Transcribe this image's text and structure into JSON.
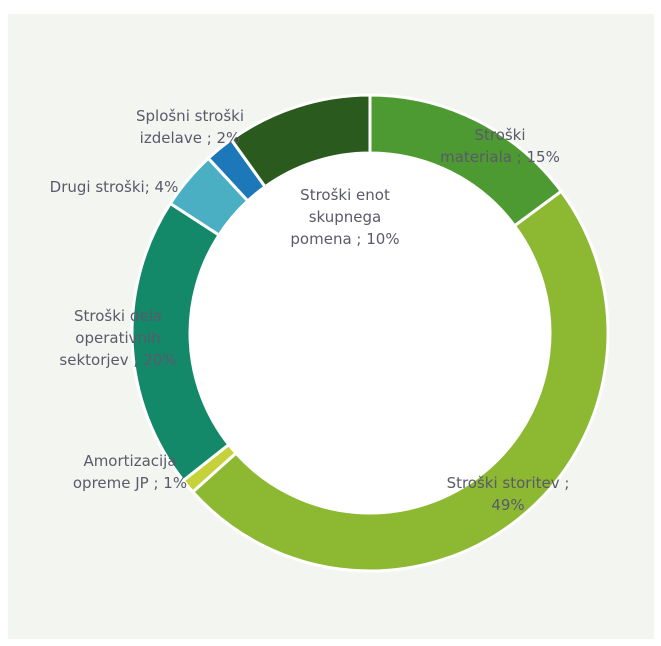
{
  "chart_data": {
    "type": "pie",
    "donut": true,
    "title": "",
    "legend": "none",
    "slices": [
      {
        "label_lines": [
          "Stroški",
          "materiala ; 15%"
        ],
        "value": 15,
        "color": "#4e9a32"
      },
      {
        "label_lines": [
          "Stroški storitev ;",
          "49%"
        ],
        "value": 49,
        "color": "#8cb832"
      },
      {
        "label_lines": [
          "Amortizacija",
          "opreme JP ; 1%"
        ],
        "value": 1,
        "color": "#c6d23a"
      },
      {
        "label_lines": [
          "Stroški dela",
          "operativnih",
          "sektorjev ; 20%"
        ],
        "value": 20,
        "color": "#13896a"
      },
      {
        "label_lines": [
          "Drugi stroški; 4%"
        ],
        "value": 4,
        "color": "#4aafc2"
      },
      {
        "label_lines": [
          "Splošni stroški",
          "izdelave ; 2%"
        ],
        "value": 2,
        "color": "#1c78b8"
      },
      {
        "label_lines": [
          "Stroški enot",
          "skupnega",
          "pomena ; 10%"
        ],
        "value": 10,
        "color": "#2b5a1e"
      }
    ]
  }
}
